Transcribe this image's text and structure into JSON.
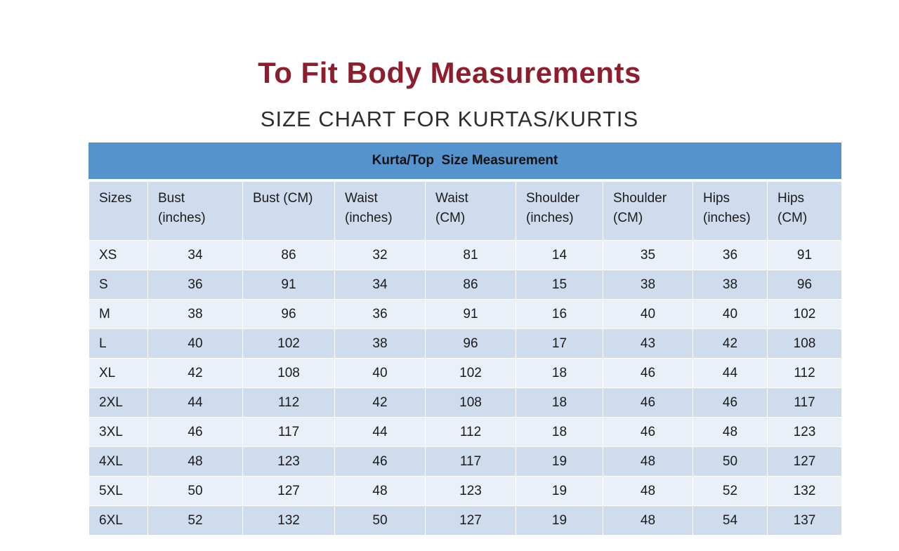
{
  "page": {
    "title": "To Fit Body Measurements",
    "subtitle": "SIZE CHART FOR KURTAS/KURTIS"
  },
  "table": {
    "banner": "Kurta/Top  Size Measurement",
    "columns": [
      "Sizes",
      "Bust\n(inches)",
      "Bust (CM)",
      "Waist\n(inches)",
      "Waist\n(CM)",
      "Shoulder\n(inches)",
      "Shoulder\n(CM)",
      "Hips\n(inches)",
      "Hips\n(CM)"
    ],
    "rows": [
      {
        "size": "XS",
        "values": [
          34,
          86,
          32,
          81,
          14,
          35,
          36,
          91
        ]
      },
      {
        "size": "S",
        "values": [
          36,
          91,
          34,
          86,
          15,
          38,
          38,
          96
        ]
      },
      {
        "size": "M",
        "values": [
          38,
          96,
          36,
          91,
          16,
          40,
          40,
          102
        ]
      },
      {
        "size": "L",
        "values": [
          40,
          102,
          38,
          96,
          17,
          43,
          42,
          108
        ]
      },
      {
        "size": "XL",
        "values": [
          42,
          108,
          40,
          102,
          18,
          46,
          44,
          112
        ]
      },
      {
        "size": "2XL",
        "values": [
          44,
          112,
          42,
          108,
          18,
          46,
          46,
          117
        ]
      },
      {
        "size": "3XL",
        "values": [
          46,
          117,
          44,
          112,
          18,
          46,
          48,
          123
        ]
      },
      {
        "size": "4XL",
        "values": [
          48,
          123,
          46,
          117,
          19,
          48,
          50,
          127
        ]
      },
      {
        "size": "5XL",
        "values": [
          50,
          127,
          48,
          123,
          19,
          48,
          52,
          132
        ]
      },
      {
        "size": "6XL",
        "values": [
          52,
          132,
          50,
          127,
          19,
          48,
          54,
          137
        ]
      }
    ]
  },
  "colors": {
    "banner_bg": "#5493CD",
    "header_bg": "#CEDCED",
    "row_light": "#EAF0F8",
    "row_dark": "#CEDCED",
    "title_color": "#8C1E2D",
    "subtitle_color": "#2E2E2E",
    "text_color": "#1B1B1B"
  }
}
